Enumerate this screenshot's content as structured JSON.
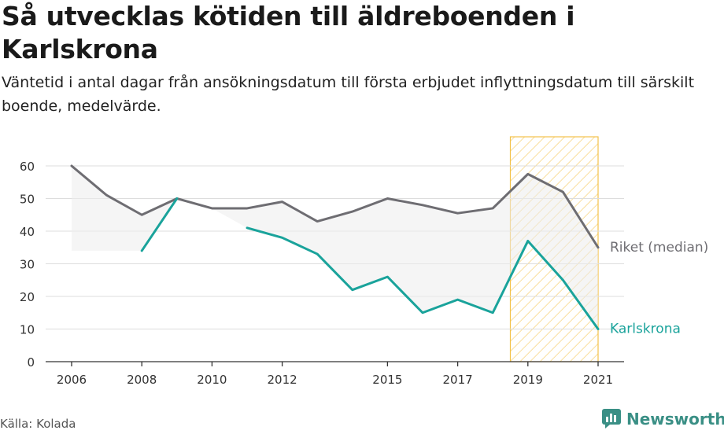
{
  "title": "Så utvecklas kötiden till äldreboenden i Karlskrona",
  "subtitle": "Väntetid i antal dagar från ansökningsdatum till första erbjudet inflyttningsdatum till särskilt boende, medelvärde.",
  "source": "Källa: Kolada",
  "brand": "Newsworthy",
  "colors": {
    "riket": "#6e6d72",
    "karlskrona": "#1aa39b",
    "highlight": "#f3c24a",
    "grid": "#dddddd"
  },
  "chart_data": {
    "type": "line",
    "x": [
      2006,
      2007,
      2008,
      2009,
      2010,
      2011,
      2012,
      2013,
      2014,
      2015,
      2016,
      2017,
      2018,
      2019,
      2020,
      2021
    ],
    "xticks": [
      "2006",
      "2008",
      "2010",
      "2012",
      "2015",
      "2017",
      "2019",
      "2021"
    ],
    "yticks": [
      "0",
      "10",
      "20",
      "30",
      "40",
      "50",
      "60"
    ],
    "ylim": [
      0,
      60
    ],
    "series": [
      {
        "name": "Riket (median)",
        "values": [
          60,
          51,
          45,
          50,
          47,
          47,
          49,
          43,
          46,
          50,
          48,
          45.5,
          47,
          57.5,
          52,
          35
        ]
      },
      {
        "name": "Karlskrona",
        "values": [
          null,
          null,
          34,
          50,
          null,
          41,
          38,
          33,
          22,
          26,
          15,
          19,
          15,
          37,
          25,
          10
        ]
      }
    ],
    "highlight_range": [
      2018.5,
      2021
    ],
    "grid": true
  }
}
